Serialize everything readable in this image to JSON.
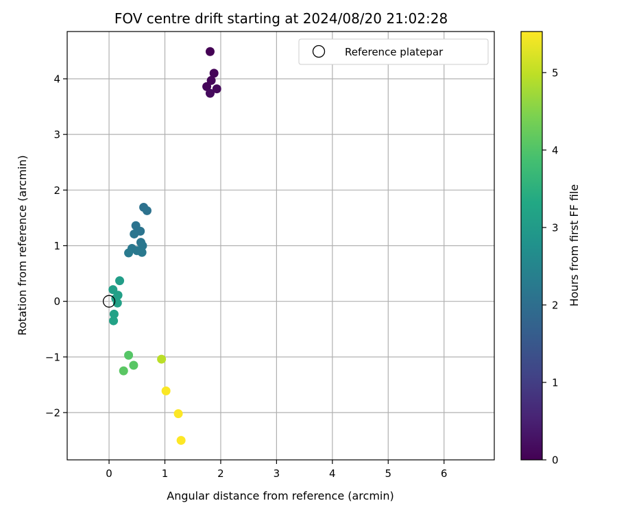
{
  "chart_data": {
    "type": "scatter",
    "title": "FOV centre drift starting at 2024/08/20 21:02:28",
    "xlabel": "Angular distance from reference (arcmin)",
    "ylabel": "Rotation from reference (arcmin)",
    "xlim": [
      -0.75,
      6.9
    ],
    "ylim": [
      -2.85,
      4.85
    ],
    "xticks": [
      0,
      1,
      2,
      3,
      4,
      5,
      6
    ],
    "yticks": [
      -2,
      -1,
      0,
      1,
      2,
      3,
      4
    ],
    "xtick_labels": [
      "0",
      "1",
      "2",
      "3",
      "4",
      "5",
      "6"
    ],
    "ytick_labels": [
      "−2",
      "−1",
      "0",
      "1",
      "2",
      "3",
      "4"
    ],
    "grid": true,
    "legend": {
      "position": "top-right",
      "entries": [
        {
          "label": "Reference platepar",
          "marker": "open-circle"
        }
      ]
    },
    "reference_point": {
      "x": 0,
      "y": 0
    },
    "colorbar": {
      "label": "Hours from first FF file",
      "colormap": "viridis",
      "min": 0,
      "max": 5.53,
      "ticks": [
        0,
        1,
        2,
        3,
        4,
        5
      ],
      "tick_labels": [
        "0",
        "1",
        "2",
        "3",
        "4",
        "5"
      ]
    },
    "points": [
      {
        "x": 1.81,
        "y": 4.49,
        "t": 0.0
      },
      {
        "x": 1.88,
        "y": 4.1,
        "t": 0.05
      },
      {
        "x": 1.83,
        "y": 3.97,
        "t": 0.08
      },
      {
        "x": 1.75,
        "y": 3.86,
        "t": 0.1
      },
      {
        "x": 1.93,
        "y": 3.82,
        "t": 0.12
      },
      {
        "x": 1.81,
        "y": 3.74,
        "t": 0.15
      },
      {
        "x": 0.62,
        "y": 1.69,
        "t": 2.05
      },
      {
        "x": 0.68,
        "y": 1.63,
        "t": 2.08
      },
      {
        "x": 0.48,
        "y": 1.36,
        "t": 2.1
      },
      {
        "x": 0.56,
        "y": 1.26,
        "t": 2.12
      },
      {
        "x": 0.45,
        "y": 1.21,
        "t": 2.14
      },
      {
        "x": 0.57,
        "y": 1.06,
        "t": 2.16
      },
      {
        "x": 0.6,
        "y": 1.0,
        "t": 2.18
      },
      {
        "x": 0.41,
        "y": 0.95,
        "t": 2.2
      },
      {
        "x": 0.5,
        "y": 0.91,
        "t": 2.22
      },
      {
        "x": 0.59,
        "y": 0.88,
        "t": 2.24
      },
      {
        "x": 0.35,
        "y": 0.87,
        "t": 2.26
      },
      {
        "x": 0.19,
        "y": 0.37,
        "t": 3.05
      },
      {
        "x": 0.07,
        "y": 0.21,
        "t": 3.08
      },
      {
        "x": 0.16,
        "y": 0.11,
        "t": 3.1
      },
      {
        "x": 0.12,
        "y": 0.05,
        "t": 3.12
      },
      {
        "x": 0.15,
        "y": -0.03,
        "t": 3.14
      },
      {
        "x": 0.09,
        "y": -0.23,
        "t": 3.16
      },
      {
        "x": 0.08,
        "y": -0.35,
        "t": 3.18
      },
      {
        "x": 0.35,
        "y": -0.97,
        "t": 4.05
      },
      {
        "x": 0.44,
        "y": -1.15,
        "t": 4.08
      },
      {
        "x": 0.26,
        "y": -1.25,
        "t": 4.1
      },
      {
        "x": 0.94,
        "y": -1.04,
        "t": 4.95
      },
      {
        "x": 1.02,
        "y": -1.61,
        "t": 5.5
      },
      {
        "x": 1.24,
        "y": -2.02,
        "t": 5.52
      },
      {
        "x": 1.29,
        "y": -2.5,
        "t": 5.53
      }
    ]
  }
}
